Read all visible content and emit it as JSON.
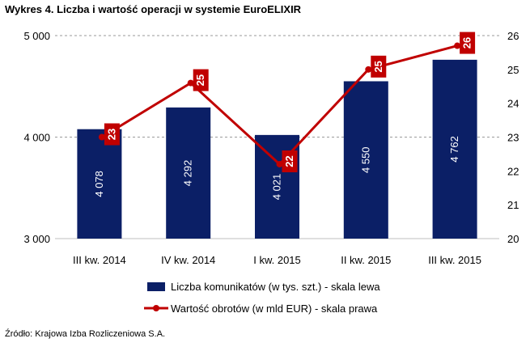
{
  "title": "Wykres 4. Liczba i wartość operacji w systemie EuroELIXIR",
  "source": "Źródło: Krajowa Izba Rozliczeniowa S.A.",
  "chart_data": {
    "type": "bar",
    "categories": [
      "III kw. 2014",
      "IV kw. 2014",
      "I kw. 2015",
      "II kw. 2015",
      "III kw. 2015"
    ],
    "series": [
      {
        "name": "Liczba komunikatów (w tys. szt.) - skala lewa",
        "kind": "bar",
        "axis": "left",
        "color": "#0b1f66",
        "values": [
          4078,
          4292,
          4021,
          4550,
          4762
        ],
        "labels": [
          "4 078",
          "4 292",
          "4 021",
          "4 550",
          "4 762"
        ]
      },
      {
        "name": "Wartość obrotów (w mld EUR) - skala prawa",
        "kind": "line",
        "axis": "right",
        "color": "#c00000",
        "values": [
          23,
          24.6,
          22.2,
          25,
          25.7
        ],
        "labels": [
          "23",
          "25",
          "22",
          "25",
          "26"
        ]
      }
    ],
    "left_axis": {
      "ylim": [
        3000,
        5000
      ],
      "ticks": [
        3000,
        4000,
        5000
      ],
      "tick_labels": [
        "3 000",
        "4 000",
        "5 000"
      ]
    },
    "right_axis": {
      "ylim": [
        20,
        26
      ],
      "ticks": [
        20,
        21,
        22,
        23,
        24,
        25,
        26
      ],
      "tick_labels": [
        "20",
        "21",
        "22",
        "23",
        "24",
        "25",
        "26"
      ]
    },
    "gridlines": "dashed",
    "legend_position": "bottom"
  }
}
